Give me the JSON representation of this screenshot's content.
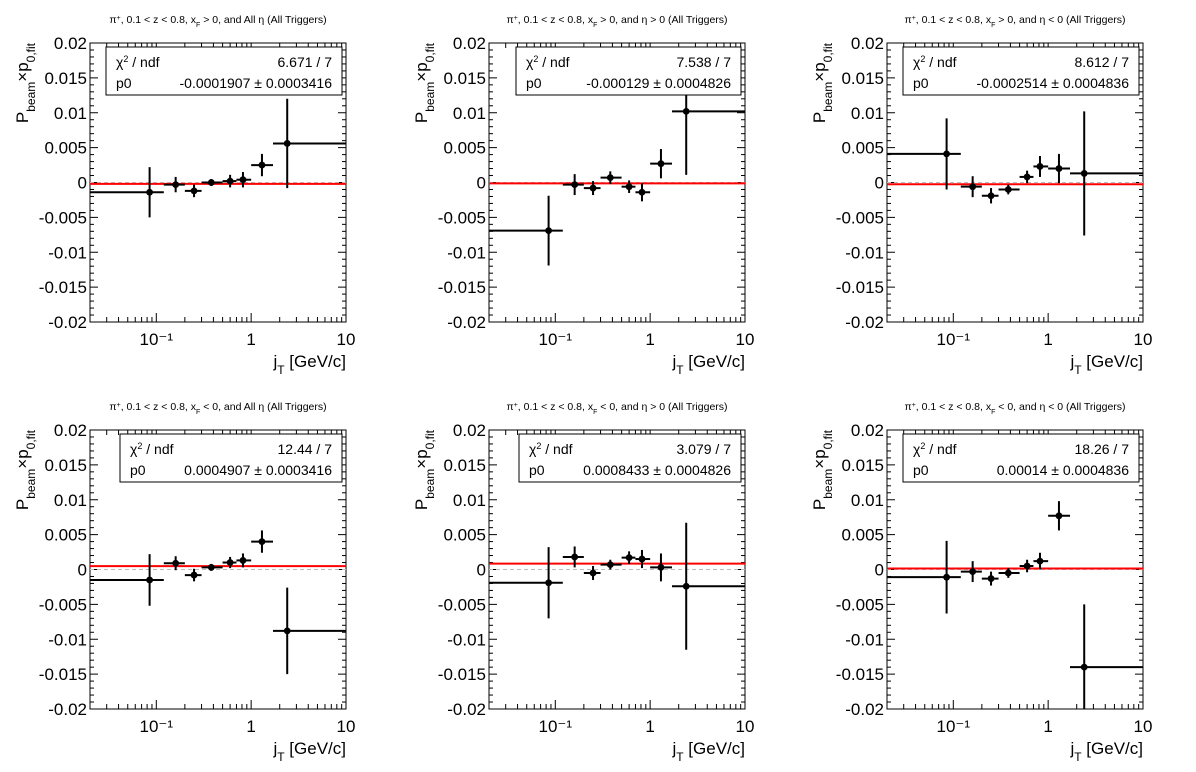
{
  "chart_data": [
    {
      "type": "scatter",
      "title_parts": [
        "π",
        "+",
        ", 0.1 < z < 0.8, x",
        "F",
        " > 0, and All η (All Triggers)"
      ],
      "xlabel": "j",
      "xlabel_sub": "T",
      "xlabel_rest": " [GeV/c]",
      "ylabel": "P",
      "ylabel_sub1": "beam",
      "ylabel_mid": "×p",
      "ylabel_sub2": "0,fit",
      "xscale": "log",
      "xlim": [
        0.02,
        10
      ],
      "ylim": [
        -0.02,
        0.02
      ],
      "x_tick_labels": [
        "10⁻¹",
        "1",
        "10"
      ],
      "y_tick_labels": [
        "0.02",
        "0.015",
        "0.01",
        "0.005",
        "0",
        "-0.005",
        "-0.01",
        "-0.015",
        "-0.02"
      ],
      "stats": {
        "chi_label": "χ",
        "chi_sup": "2",
        "chi_rest": " / ndf",
        "chi_value": "6.671 / 7",
        "p0_label": "p0",
        "p0_value": "-0.0001907 ± 0.0003416"
      },
      "fit_value": -0.0001907,
      "points": [
        {
          "x": 0.085,
          "xlo": 0.02,
          "xhi": 0.12,
          "y": -0.0014,
          "ey": 0.0036
        },
        {
          "x": 0.16,
          "xlo": 0.12,
          "xhi": 0.2,
          "y": -0.0003,
          "ey": 0.0011
        },
        {
          "x": 0.25,
          "xlo": 0.2,
          "xhi": 0.3,
          "y": -0.0012,
          "ey": 0.0009
        },
        {
          "x": 0.38,
          "xlo": 0.3,
          "xhi": 0.5,
          "y": 0.0,
          "ey": 0.0005
        },
        {
          "x": 0.6,
          "xlo": 0.5,
          "xhi": 0.7,
          "y": 0.0002,
          "ey": 0.0009
        },
        {
          "x": 0.82,
          "xlo": 0.7,
          "xhi": 1.0,
          "y": 0.0004,
          "ey": 0.0011
        },
        {
          "x": 1.3,
          "xlo": 1.0,
          "xhi": 1.7,
          "y": 0.0025,
          "ey": 0.0016
        },
        {
          "x": 2.4,
          "xlo": 1.7,
          "xhi": 10.0,
          "y": 0.0056,
          "ey": 0.0064
        }
      ]
    },
    {
      "type": "scatter",
      "title_parts": [
        "π",
        "+",
        ", 0.1 < z < 0.8, x",
        "F",
        " > 0, and η > 0 (All Triggers)"
      ],
      "xlabel": "j",
      "xlabel_sub": "T",
      "xlabel_rest": " [GeV/c]",
      "ylabel": "P",
      "ylabel_sub1": "beam",
      "ylabel_mid": "×p",
      "ylabel_sub2": "0,fit",
      "xscale": "log",
      "xlim": [
        0.02,
        10
      ],
      "ylim": [
        -0.02,
        0.02
      ],
      "x_tick_labels": [
        "10⁻¹",
        "1",
        "10"
      ],
      "y_tick_labels": [
        "0.02",
        "0.015",
        "0.01",
        "0.005",
        "0",
        "-0.005",
        "-0.01",
        "-0.015",
        "-0.02"
      ],
      "stats": {
        "chi_label": "χ",
        "chi_sup": "2",
        "chi_rest": " / ndf",
        "chi_value": "7.538 / 7",
        "p0_label": "p0",
        "p0_value": "-0.000129 ± 0.0004826"
      },
      "fit_value": -0.000129,
      "points": [
        {
          "x": 0.085,
          "xlo": 0.02,
          "xhi": 0.12,
          "y": -0.0069,
          "ey": 0.005
        },
        {
          "x": 0.16,
          "xlo": 0.12,
          "xhi": 0.2,
          "y": -0.0003,
          "ey": 0.0015
        },
        {
          "x": 0.25,
          "xlo": 0.2,
          "xhi": 0.3,
          "y": -0.0008,
          "ey": 0.001
        },
        {
          "x": 0.38,
          "xlo": 0.3,
          "xhi": 0.5,
          "y": 0.0007,
          "ey": 0.0009
        },
        {
          "x": 0.6,
          "xlo": 0.5,
          "xhi": 0.7,
          "y": -0.0006,
          "ey": 0.0009
        },
        {
          "x": 0.82,
          "xlo": 0.7,
          "xhi": 1.0,
          "y": -0.0014,
          "ey": 0.0013
        },
        {
          "x": 1.3,
          "xlo": 1.0,
          "xhi": 1.7,
          "y": 0.0027,
          "ey": 0.0021
        },
        {
          "x": 2.4,
          "xlo": 1.7,
          "xhi": 10.0,
          "y": 0.0102,
          "ey": 0.0091
        }
      ]
    },
    {
      "type": "scatter",
      "title_parts": [
        "π",
        "+",
        ", 0.1 < z < 0.8, x",
        "F",
        " > 0, and η < 0 (All Triggers)"
      ],
      "xlabel": "j",
      "xlabel_sub": "T",
      "xlabel_rest": " [GeV/c]",
      "ylabel": "P",
      "ylabel_sub1": "beam",
      "ylabel_mid": "×p",
      "ylabel_sub2": "0,fit",
      "xscale": "log",
      "xlim": [
        0.02,
        10
      ],
      "ylim": [
        -0.02,
        0.02
      ],
      "x_tick_labels": [
        "10⁻¹",
        "1",
        "10"
      ],
      "y_tick_labels": [
        "0.02",
        "0.015",
        "0.01",
        "0.005",
        "0",
        "-0.005",
        "-0.01",
        "-0.015",
        "-0.02"
      ],
      "stats": {
        "chi_label": "χ",
        "chi_sup": "2",
        "chi_rest": " / ndf",
        "chi_value": "8.612 / 7",
        "p0_label": "p0",
        "p0_value": "-0.0002514 ± 0.0004836"
      },
      "fit_value": -0.0002514,
      "points": [
        {
          "x": 0.085,
          "xlo": 0.02,
          "xhi": 0.12,
          "y": 0.0041,
          "ey": 0.0051
        },
        {
          "x": 0.16,
          "xlo": 0.12,
          "xhi": 0.2,
          "y": -0.0006,
          "ey": 0.0015
        },
        {
          "x": 0.25,
          "xlo": 0.2,
          "xhi": 0.3,
          "y": -0.0019,
          "ey": 0.0011
        },
        {
          "x": 0.38,
          "xlo": 0.3,
          "xhi": 0.5,
          "y": -0.001,
          "ey": 0.0007
        },
        {
          "x": 0.6,
          "xlo": 0.5,
          "xhi": 0.7,
          "y": 0.0008,
          "ey": 0.0009
        },
        {
          "x": 0.82,
          "xlo": 0.7,
          "xhi": 1.0,
          "y": 0.0023,
          "ey": 0.0015
        },
        {
          "x": 1.3,
          "xlo": 1.0,
          "xhi": 1.7,
          "y": 0.002,
          "ey": 0.0021
        },
        {
          "x": 2.4,
          "xlo": 1.7,
          "xhi": 10.0,
          "y": 0.0013,
          "ey": 0.0089
        }
      ]
    },
    {
      "type": "scatter",
      "title_parts": [
        "π",
        "+",
        ", 0.1 < z < 0.8, x",
        "F",
        " < 0, and All η (All Triggers)"
      ],
      "xlabel": "j",
      "xlabel_sub": "T",
      "xlabel_rest": " [GeV/c]",
      "ylabel": "P",
      "ylabel_sub1": "beam",
      "ylabel_mid": "×p",
      "ylabel_sub2": "0,fit",
      "xscale": "log",
      "xlim": [
        0.02,
        10
      ],
      "ylim": [
        -0.02,
        0.02
      ],
      "x_tick_labels": [
        "10⁻¹",
        "1",
        "10"
      ],
      "y_tick_labels": [
        "0.02",
        "0.015",
        "0.01",
        "0.005",
        "0",
        "-0.005",
        "-0.01",
        "-0.015",
        "-0.02"
      ],
      "stats": {
        "chi_label": "χ",
        "chi_sup": "2",
        "chi_rest": " / ndf",
        "chi_value": "12.44 / 7",
        "p0_label": "p0",
        "p0_value": "0.0004907 ± 0.0003416"
      },
      "fit_value": 0.0004907,
      "points": [
        {
          "x": 0.085,
          "xlo": 0.02,
          "xhi": 0.12,
          "y": -0.0015,
          "ey": 0.0037
        },
        {
          "x": 0.16,
          "xlo": 0.12,
          "xhi": 0.2,
          "y": 0.0009,
          "ey": 0.001
        },
        {
          "x": 0.25,
          "xlo": 0.2,
          "xhi": 0.3,
          "y": -0.0008,
          "ey": 0.0009
        },
        {
          "x": 0.38,
          "xlo": 0.3,
          "xhi": 0.5,
          "y": 0.0003,
          "ey": 0.0005
        },
        {
          "x": 0.6,
          "xlo": 0.5,
          "xhi": 0.7,
          "y": 0.001,
          "ey": 0.0008
        },
        {
          "x": 0.82,
          "xlo": 0.7,
          "xhi": 1.0,
          "y": 0.0013,
          "ey": 0.001
        },
        {
          "x": 1.3,
          "xlo": 1.0,
          "xhi": 1.7,
          "y": 0.004,
          "ey": 0.0016
        },
        {
          "x": 2.4,
          "xlo": 1.7,
          "xhi": 10.0,
          "y": -0.0088,
          "ey": 0.0062
        }
      ]
    },
    {
      "type": "scatter",
      "title_parts": [
        "π",
        "+",
        ", 0.1 < z < 0.8, x",
        "F",
        " < 0, and η > 0 (All Triggers)"
      ],
      "xlabel": "j",
      "xlabel_sub": "T",
      "xlabel_rest": " [GeV/c]",
      "ylabel": "P",
      "ylabel_sub1": "beam",
      "ylabel_mid": "×p",
      "ylabel_sub2": "0,fit",
      "xscale": "log",
      "xlim": [
        0.02,
        10
      ],
      "ylim": [
        -0.02,
        0.02
      ],
      "x_tick_labels": [
        "10⁻¹",
        "1",
        "10"
      ],
      "y_tick_labels": [
        "0.02",
        "0.015",
        "0.01",
        "0.005",
        "0",
        "-0.005",
        "-0.01",
        "-0.015",
        "-0.02"
      ],
      "stats": {
        "chi_label": "χ",
        "chi_sup": "2",
        "chi_rest": " / ndf",
        "chi_value": "3.079 / 7",
        "p0_label": "p0",
        "p0_value": "0.0008433 ± 0.0004826"
      },
      "fit_value": 0.0008433,
      "points": [
        {
          "x": 0.085,
          "xlo": 0.02,
          "xhi": 0.12,
          "y": -0.0019,
          "ey": 0.0051
        },
        {
          "x": 0.16,
          "xlo": 0.12,
          "xhi": 0.2,
          "y": 0.0018,
          "ey": 0.0015
        },
        {
          "x": 0.25,
          "xlo": 0.2,
          "xhi": 0.3,
          "y": -0.0005,
          "ey": 0.001
        },
        {
          "x": 0.38,
          "xlo": 0.3,
          "xhi": 0.5,
          "y": 0.0007,
          "ey": 0.0007
        },
        {
          "x": 0.6,
          "xlo": 0.5,
          "xhi": 0.7,
          "y": 0.0017,
          "ey": 0.0009
        },
        {
          "x": 0.82,
          "xlo": 0.7,
          "xhi": 1.0,
          "y": 0.0015,
          "ey": 0.0013
        },
        {
          "x": 1.3,
          "xlo": 1.0,
          "xhi": 1.7,
          "y": 0.0003,
          "ey": 0.002
        },
        {
          "x": 2.4,
          "xlo": 1.7,
          "xhi": 10.0,
          "y": -0.0024,
          "ey": 0.0091
        }
      ]
    },
    {
      "type": "scatter",
      "title_parts": [
        "π",
        "+",
        ", 0.1 < z < 0.8, x",
        "F",
        " < 0, and η < 0 (All Triggers)"
      ],
      "xlabel": "j",
      "xlabel_sub": "T",
      "xlabel_rest": " [GeV/c]",
      "ylabel": "P",
      "ylabel_sub1": "beam",
      "ylabel_mid": "×p",
      "ylabel_sub2": "0,fit",
      "xscale": "log",
      "xlim": [
        0.02,
        10
      ],
      "ylim": [
        -0.02,
        0.02
      ],
      "x_tick_labels": [
        "10⁻¹",
        "1",
        "10"
      ],
      "y_tick_labels": [
        "0.02",
        "0.015",
        "0.01",
        "0.005",
        "0",
        "-0.005",
        "-0.01",
        "-0.015",
        "-0.02"
      ],
      "stats": {
        "chi_label": "χ",
        "chi_sup": "2",
        "chi_rest": " / ndf",
        "chi_value": "18.26 / 7",
        "p0_label": "p0",
        "p0_value": "0.00014 ± 0.0004836"
      },
      "fit_value": 0.00014,
      "points": [
        {
          "x": 0.085,
          "xlo": 0.02,
          "xhi": 0.12,
          "y": -0.0011,
          "ey": 0.0052
        },
        {
          "x": 0.16,
          "xlo": 0.12,
          "xhi": 0.2,
          "y": -0.0003,
          "ey": 0.0015
        },
        {
          "x": 0.25,
          "xlo": 0.2,
          "xhi": 0.3,
          "y": -0.0013,
          "ey": 0.001
        },
        {
          "x": 0.38,
          "xlo": 0.3,
          "xhi": 0.5,
          "y": -0.0005,
          "ey": 0.0007
        },
        {
          "x": 0.6,
          "xlo": 0.5,
          "xhi": 0.7,
          "y": 0.0005,
          "ey": 0.0009
        },
        {
          "x": 0.82,
          "xlo": 0.7,
          "xhi": 1.0,
          "y": 0.0012,
          "ey": 0.0012
        },
        {
          "x": 1.3,
          "xlo": 1.0,
          "xhi": 1.7,
          "y": 0.0077,
          "ey": 0.0021
        },
        {
          "x": 2.4,
          "xlo": 1.7,
          "xhi": 10.0,
          "y": -0.014,
          "ey": 0.009
        }
      ]
    }
  ],
  "colors": {
    "fit_line": "#ff0000",
    "zero_line": "#bbbbbb",
    "markers": "#000000",
    "frame": "#000000"
  }
}
